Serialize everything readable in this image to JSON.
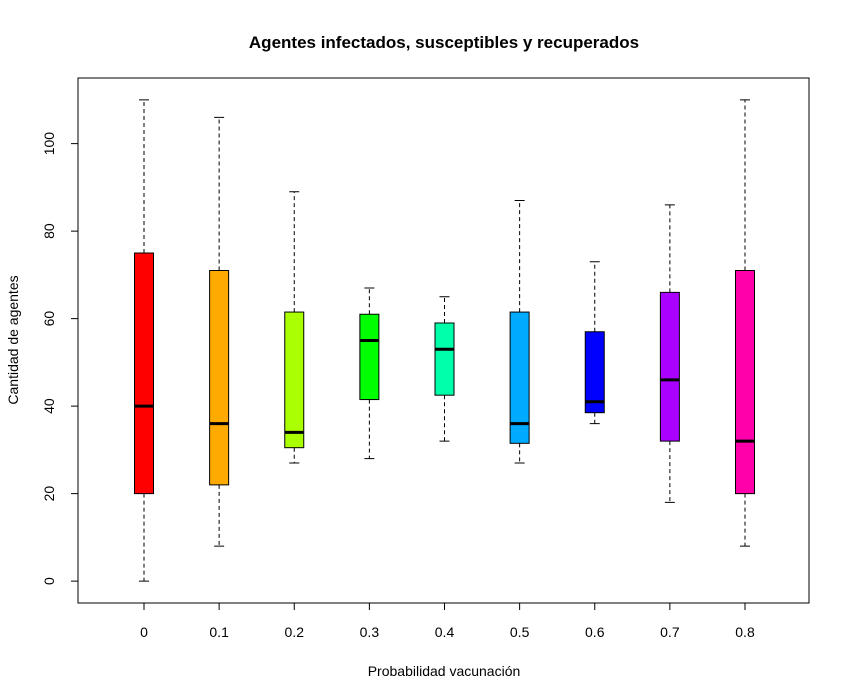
{
  "chart_data": {
    "type": "boxplot",
    "title": "Agentes infectados, susceptibles y recuperados",
    "xlabel": "Probabilidad vacunación",
    "ylabel": "Cantidad de agentes",
    "categories": [
      "0",
      "0.1",
      "0.2",
      "0.3",
      "0.4",
      "0.5",
      "0.6",
      "0.7",
      "0.8"
    ],
    "y_ticks": [
      "0",
      "20",
      "40",
      "60",
      "80",
      "100"
    ],
    "ylim": [
      -5,
      115
    ],
    "grid": false,
    "boxes": [
      {
        "min": 0,
        "q1": 20,
        "median": 40,
        "q3": 75,
        "max": 110,
        "color": "#FF0000"
      },
      {
        "min": 8,
        "q1": 22,
        "median": 36,
        "q3": 71,
        "max": 106,
        "color": "#FFAA00"
      },
      {
        "min": 27,
        "q1": 30.5,
        "median": 34,
        "q3": 61.5,
        "max": 89,
        "color": "#AAFF00"
      },
      {
        "min": 28,
        "q1": 41.5,
        "median": 55,
        "q3": 61,
        "max": 67,
        "color": "#00FF00"
      },
      {
        "min": 32,
        "q1": 42.5,
        "median": 53,
        "q3": 59,
        "max": 65,
        "color": "#00FFAA"
      },
      {
        "min": 27,
        "q1": 31.5,
        "median": 36,
        "q3": 61.5,
        "max": 87,
        "color": "#00AAFF"
      },
      {
        "min": 36,
        "q1": 38.5,
        "median": 41,
        "q3": 57,
        "max": 73,
        "color": "#0000FF"
      },
      {
        "min": 18,
        "q1": 32,
        "median": 46,
        "q3": 66,
        "max": 86,
        "color": "#AA00FF"
      },
      {
        "min": 8,
        "q1": 20,
        "median": 32,
        "q3": 71,
        "max": 110,
        "color": "#FF00AA"
      }
    ]
  }
}
